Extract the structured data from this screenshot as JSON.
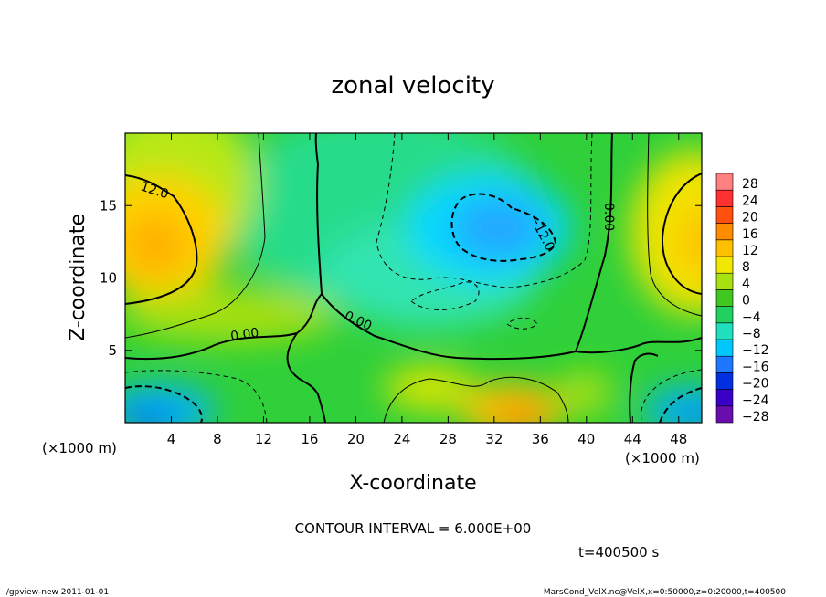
{
  "chart_data": {
    "type": "heatmap",
    "title": "zonal velocity",
    "xlabel": "X-coordinate",
    "ylabel": "Z-coordinate",
    "x_unit": "(×1000 m)",
    "z_unit": "(×1000 m)",
    "xlim": [
      0,
      50
    ],
    "ylim": [
      0,
      20
    ],
    "x_ticks": [
      "4",
      "8",
      "12",
      "16",
      "20",
      "24",
      "28",
      "32",
      "36",
      "40",
      "44",
      "48"
    ],
    "y_ticks": [
      "5",
      "10",
      "15"
    ],
    "colorbar_levels": [
      "28",
      "24",
      "20",
      "16",
      "12",
      "8",
      "4",
      "0",
      "−4",
      "−8",
      "−12",
      "−16",
      "−20",
      "−24",
      "−28"
    ],
    "contour_interval_text": "CONTOUR INTERVAL = 6.000E+00",
    "contour_labels": [
      "12.0",
      "0.00",
      "0.00",
      "−12.0",
      "0.00"
    ],
    "time_label": "t=400500 s",
    "features": [
      {
        "desc": "positive max left",
        "x": 3,
        "z": 12.5,
        "value": 16
      },
      {
        "desc": "positive max right",
        "x": 49,
        "z": 12,
        "value": 14
      },
      {
        "desc": "negative min center-top",
        "x": 32,
        "z": 13,
        "value": -12
      },
      {
        "desc": "negative min bottom-left",
        "x": 3,
        "z": 1,
        "value": -16
      },
      {
        "desc": "negative min bottom-right",
        "x": 48,
        "z": 1,
        "value": -14
      },
      {
        "desc": "positive bottom center",
        "x": 34,
        "z": 1,
        "value": 16
      }
    ]
  },
  "footer": {
    "left": "./gpview-new   2011-01-01",
    "right": "MarsCond_VelX.nc@VelX,x=0:50000,z=0:20000,t=400500"
  },
  "colors": {
    "scale": [
      "#6a0dad",
      "#3b00c8",
      "#0030e0",
      "#1e78ff",
      "#00c8ff",
      "#20e0c0",
      "#20d060",
      "#40c820",
      "#a8e010",
      "#f0e800",
      "#ffc000",
      "#ff8c00",
      "#ff5010",
      "#ff3030",
      "#ff8080"
    ]
  }
}
